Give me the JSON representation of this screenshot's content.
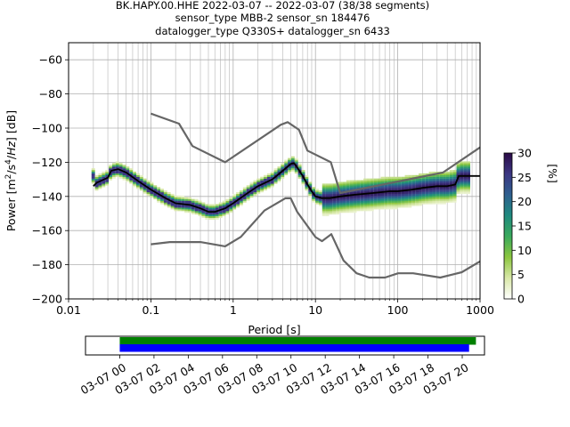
{
  "title_lines": [
    "BK.HAPY.00.HHE   2022-03-07 -- 2022-03-07  (38/38 segments)",
    "sensor_type MBB-2 sensor_sn 184476",
    "datalogger_type Q330S+ datalogger_sn 6433"
  ],
  "chart_data": [
    {
      "type": "heatmap",
      "title": "BK.HAPY.00.HHE   2022-03-07 -- 2022-03-07  (38/38 segments)",
      "xlabel": "Period [s]",
      "ylabel": "Power [m²/s⁴/Hz] [dB]",
      "xscale": "log",
      "xlim": [
        0.01,
        1000
      ],
      "ylim": [
        -200,
        -50
      ],
      "grid": true,
      "xticks": [
        {
          "value": 0.01,
          "label": "0.01"
        },
        {
          "value": 0.1,
          "label": "0.1"
        },
        {
          "value": 1,
          "label": "1"
        },
        {
          "value": 10,
          "label": "10"
        },
        {
          "value": 100,
          "label": "100"
        },
        {
          "value": 1000,
          "label": "1000"
        }
      ],
      "yticks": [
        {
          "value": -60,
          "label": "−60"
        },
        {
          "value": -80,
          "label": "−80"
        },
        {
          "value": -100,
          "label": "−100"
        },
        {
          "value": -120,
          "label": "−120"
        },
        {
          "value": -140,
          "label": "−140"
        },
        {
          "value": -160,
          "label": "−160"
        },
        {
          "value": -180,
          "label": "−180"
        },
        {
          "value": -200,
          "label": "−200"
        }
      ],
      "colorbar": {
        "label": "[%]",
        "range": [
          0,
          30
        ],
        "ticks": [
          {
            "value": 0,
            "label": "0"
          },
          {
            "value": 5,
            "label": "5"
          },
          {
            "value": 10,
            "label": "10"
          },
          {
            "value": 15,
            "label": "15"
          },
          {
            "value": 20,
            "label": "20"
          },
          {
            "value": 25,
            "label": "25"
          },
          {
            "value": 30,
            "label": "30"
          }
        ],
        "colors": [
          "#ffffff",
          "#d9e8a8",
          "#8cc63f",
          "#3aaa5c",
          "#1f8a7f",
          "#2e5f8f",
          "#3b3682",
          "#2b0a46"
        ]
      },
      "series": [
        {
          "role": "noise-model-high",
          "color": "#666666",
          "points": [
            [
              0.1,
              -91.5
            ],
            [
              0.22,
              -97.4
            ],
            [
              0.32,
              -110.5
            ],
            [
              0.8,
              -120
            ],
            [
              3.8,
              -98
            ],
            [
              4.6,
              -96.5
            ],
            [
              6.3,
              -101
            ],
            [
              8,
              -113.2
            ],
            [
              15.4,
              -120
            ],
            [
              20,
              -138
            ],
            [
              354.8,
              -126
            ],
            [
              1000,
              -111.3
            ]
          ]
        },
        {
          "role": "noise-model-low",
          "color": "#666666",
          "points": [
            [
              0.1,
              -168
            ],
            [
              0.17,
              -166.7
            ],
            [
              0.4,
              -166.7
            ],
            [
              0.8,
              -169.2
            ],
            [
              1.24,
              -163.7
            ],
            [
              2.4,
              -148.3
            ],
            [
              4.3,
              -141.1
            ],
            [
              5,
              -141.1
            ],
            [
              6,
              -149
            ],
            [
              10,
              -163.8
            ],
            [
              12,
              -166.2
            ],
            [
              15.6,
              -162.1
            ],
            [
              21.9,
              -177.5
            ],
            [
              31.6,
              -185
            ],
            [
              45,
              -187.5
            ],
            [
              70,
              -187.5
            ],
            [
              101,
              -185
            ],
            [
              154,
              -185
            ],
            [
              328,
              -187.5
            ],
            [
              600,
              -184.4
            ],
            [
              1000,
              -178
            ]
          ]
        },
        {
          "role": "mode",
          "color": "#000000",
          "points": [
            [
              0.02,
              -134
            ],
            [
              0.022,
              -132
            ],
            [
              0.03,
              -129
            ],
            [
              0.033,
              -125
            ],
            [
              0.04,
              -124
            ],
            [
              0.05,
              -126
            ],
            [
              0.07,
              -131
            ],
            [
              0.1,
              -136
            ],
            [
              0.15,
              -141
            ],
            [
              0.2,
              -144
            ],
            [
              0.3,
              -145
            ],
            [
              0.4,
              -147
            ],
            [
              0.5,
              -149
            ],
            [
              0.6,
              -149
            ],
            [
              0.8,
              -147
            ],
            [
              1,
              -144
            ],
            [
              1.5,
              -138
            ],
            [
              2,
              -134
            ],
            [
              3,
              -130
            ],
            [
              4,
              -125
            ],
            [
              5,
              -121
            ],
            [
              5.5,
              -120.5
            ],
            [
              6,
              -123
            ],
            [
              7,
              -128
            ],
            [
              8,
              -133
            ],
            [
              9,
              -137
            ],
            [
              10,
              -140
            ],
            [
              12,
              -141
            ],
            [
              15,
              -141
            ],
            [
              20,
              -140
            ],
            [
              30,
              -139
            ],
            [
              50,
              -138
            ],
            [
              80,
              -137
            ],
            [
              100,
              -137
            ],
            [
              150,
              -136
            ],
            [
              200,
              -135
            ],
            [
              300,
              -134
            ],
            [
              400,
              -134
            ],
            [
              500,
              -133
            ],
            [
              550,
              -128
            ],
            [
              1000,
              -128
            ]
          ]
        }
      ]
    },
    {
      "type": "bar",
      "title": "",
      "xlabel": "",
      "role": "data-coverage",
      "xticks": [
        "03-07 00",
        "03-07 02",
        "03-07 04",
        "03-07 06",
        "03-07 08",
        "03-07 10",
        "03-07 12",
        "03-07 14",
        "03-07 16",
        "03-07 18",
        "03-07 20"
      ],
      "xlim_hours": [
        -2,
        21.3
      ],
      "series": [
        {
          "role": "available",
          "color": "#008000",
          "start_hour": 0,
          "end_hour": 20.8
        },
        {
          "role": "used",
          "color": "#0000ff",
          "start_hour": 0,
          "end_hour": 20.4
        }
      ]
    }
  ]
}
